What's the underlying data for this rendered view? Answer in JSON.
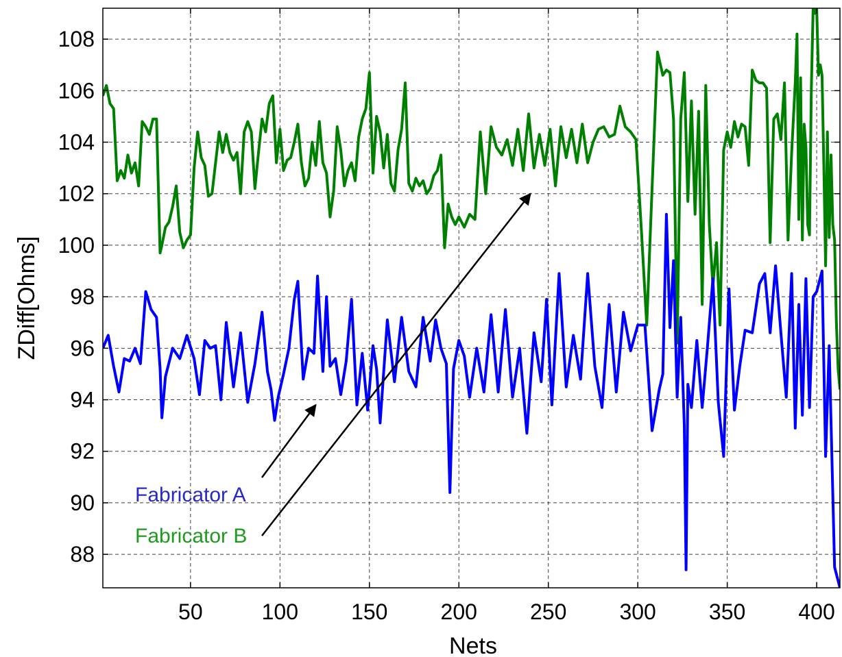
{
  "chart_data": {
    "type": "line",
    "title": "",
    "xlabel": "Nets",
    "ylabel": "ZDiff[Ohms]",
    "xlim": [
      1,
      413
    ],
    "ylim": [
      86.7,
      109.2
    ],
    "grid": true,
    "x_ticks": [
      50,
      100,
      150,
      200,
      250,
      300,
      350,
      400
    ],
    "y_ticks": [
      88,
      90,
      92,
      94,
      96,
      98,
      100,
      102,
      104,
      106,
      108
    ],
    "x_tick_labels": [
      "50",
      "100",
      "150",
      "200",
      "250",
      "300",
      "350",
      "400"
    ],
    "y_tick_labels": [
      "88",
      "90",
      "92",
      "94",
      "96",
      "98",
      "100",
      "102",
      "104",
      "106",
      "108"
    ],
    "series": [
      {
        "name": "Fabricator A",
        "color": "#0000ff",
        "x": [
          1,
          4,
          7,
          10,
          13,
          16,
          19,
          22,
          25,
          28,
          31,
          33,
          34,
          36,
          40,
          44,
          48,
          52,
          55,
          58,
          61,
          64,
          67,
          70,
          74,
          78,
          82,
          86,
          90,
          93,
          95,
          97,
          99,
          102,
          105,
          108,
          110,
          113,
          116,
          119,
          121,
          124,
          126,
          128,
          131,
          134,
          137,
          140,
          143,
          146,
          149,
          152,
          154,
          156,
          160,
          164,
          168,
          172,
          176,
          180,
          184,
          187,
          190,
          193,
          195,
          197,
          200,
          203,
          206,
          210,
          214,
          218,
          222,
          226,
          230,
          234,
          238,
          242,
          246,
          249,
          252,
          256,
          260,
          264,
          268,
          272,
          276,
          280,
          284,
          288,
          292,
          296,
          300,
          304,
          308,
          312,
          314,
          316,
          318,
          320,
          322,
          324,
          326,
          327,
          328,
          330,
          333,
          336,
          339,
          342,
          345,
          348,
          351,
          354,
          357,
          360,
          364,
          368,
          371,
          374,
          377,
          380,
          383,
          386,
          388,
          390,
          392,
          394,
          396,
          398,
          400,
          403,
          405,
          407,
          410,
          413
        ],
        "values": [
          96.0,
          96.5,
          95.3,
          94.3,
          95.6,
          95.5,
          96.0,
          95.4,
          98.2,
          97.5,
          97.2,
          95.2,
          93.3,
          94.9,
          96.0,
          95.6,
          96.5,
          95.6,
          94.2,
          96.3,
          96.0,
          96.1,
          94.0,
          97.0,
          94.5,
          96.6,
          93.9,
          95.4,
          97.4,
          95.1,
          94.4,
          93.2,
          94.1,
          95.0,
          96.0,
          97.9,
          98.6,
          94.8,
          96.0,
          95.8,
          98.8,
          95.1,
          98.0,
          95.3,
          95.6,
          94.2,
          95.5,
          97.9,
          93.8,
          95.8,
          93.6,
          96.1,
          95.2,
          93.1,
          97.1,
          94.7,
          97.2,
          95.1,
          94.5,
          97.2,
          95.5,
          97.1,
          96.0,
          95.4,
          90.4,
          95.2,
          96.3,
          95.7,
          94.1,
          96.0,
          94.3,
          97.3,
          94.3,
          97.5,
          94.1,
          96.0,
          92.7,
          96.6,
          94.7,
          97.9,
          93.8,
          98.9,
          94.5,
          96.5,
          94.8,
          98.9,
          95.3,
          93.7,
          97.7,
          94.3,
          97.4,
          95.9,
          96.9,
          96.9,
          92.8,
          94.4,
          95.0,
          101.2,
          96.8,
          99.4,
          94.1,
          97.2,
          93.0,
          87.4,
          94.6,
          93.7,
          96.3,
          93.7,
          96.1,
          98.7,
          93.9,
          91.8,
          98.3,
          93.6,
          95.3,
          96.7,
          96.6,
          98.5,
          98.9,
          96.6,
          99.2,
          96.6,
          94.1,
          98.9,
          92.9,
          97.7,
          93.4,
          98.7,
          93.7,
          98.0,
          98.2,
          99.0,
          91.8,
          96.1,
          87.5,
          86.7
        ]
      },
      {
        "name": "Fabricator B",
        "color": "#008000",
        "x": [
          1,
          3,
          5,
          7,
          9,
          11,
          13,
          15,
          17,
          19,
          21,
          23,
          25,
          27,
          29,
          31,
          33,
          34,
          36,
          38,
          40,
          42,
          44,
          46,
          48,
          50,
          52,
          54,
          56,
          58,
          60,
          62,
          64,
          66,
          68,
          70,
          72,
          74,
          76,
          78,
          80,
          82,
          84,
          86,
          88,
          90,
          92,
          94,
          96,
          98,
          100,
          102,
          104,
          106,
          108,
          110,
          112,
          114,
          116,
          118,
          120,
          122,
          124,
          126,
          128,
          130,
          132,
          134,
          136,
          138,
          140,
          142,
          144,
          146,
          148,
          150,
          152,
          154,
          156,
          158,
          160,
          162,
          164,
          166,
          168,
          170,
          172,
          174,
          176,
          178,
          180,
          182,
          184,
          186,
          188,
          190,
          192,
          194,
          196,
          198,
          200,
          203,
          206,
          209,
          212,
          215,
          218,
          221,
          224,
          227,
          230,
          233,
          236,
          239,
          242,
          245,
          248,
          251,
          254,
          257,
          260,
          263,
          266,
          269,
          272,
          275,
          278,
          281,
          284,
          287,
          290,
          293,
          296,
          299,
          302,
          305,
          308,
          311,
          313,
          314,
          316,
          318,
          320,
          322,
          324,
          326,
          328,
          330,
          332,
          334,
          336,
          338,
          340,
          342,
          344,
          346,
          348,
          350,
          352,
          354,
          356,
          358,
          360,
          362,
          364,
          366,
          368,
          370,
          372,
          374,
          376,
          378,
          380,
          382,
          384,
          386,
          388,
          389,
          390,
          391,
          392,
          393,
          394,
          395,
          396,
          397,
          398,
          399,
          400,
          401,
          402,
          403,
          404,
          405,
          406,
          407,
          408,
          409,
          410,
          411,
          412,
          413
        ],
        "values": [
          105.8,
          106.2,
          105.5,
          105.3,
          102.5,
          102.9,
          102.6,
          103.5,
          102.8,
          103.2,
          102.3,
          104.8,
          104.6,
          104.3,
          104.9,
          104.9,
          99.7,
          100.0,
          100.7,
          100.9,
          101.5,
          102.3,
          100.5,
          99.9,
          100.2,
          100.4,
          103.0,
          104.4,
          103.4,
          103.1,
          101.9,
          102.0,
          103.2,
          104.4,
          103.6,
          104.3,
          103.6,
          103.3,
          103.6,
          102.0,
          104.4,
          104.8,
          104.4,
          102.2,
          103.6,
          104.9,
          104.4,
          105.5,
          105.8,
          103.2,
          104.5,
          102.9,
          103.3,
          103.4,
          104.0,
          104.7,
          103.2,
          102.3,
          102.6,
          104.0,
          103.1,
          104.8,
          103.2,
          102.8,
          101.1,
          102.1,
          104.6,
          103.7,
          102.3,
          102.9,
          103.2,
          102.5,
          104.2,
          104.9,
          105.3,
          106.7,
          102.8,
          105.0,
          104.4,
          103.0,
          104.3,
          102.4,
          102.1,
          103.7,
          104.5,
          106.3,
          102.4,
          102.1,
          102.6,
          102.3,
          102.5,
          102.0,
          102.2,
          102.7,
          102.9,
          103.5,
          99.9,
          101.6,
          101.1,
          100.8,
          101.1,
          100.7,
          101.2,
          101.0,
          104.4,
          102.0,
          104.6,
          103.8,
          103.5,
          104.1,
          103.1,
          104.5,
          102.9,
          105.1,
          103.0,
          104.3,
          103.1,
          104.5,
          102.3,
          104.6,
          103.4,
          104.5,
          103.2,
          104.7,
          103.2,
          104.0,
          104.5,
          104.6,
          104.2,
          104.3,
          105.4,
          104.6,
          104.4,
          104.1,
          100.6,
          96.9,
          102.2,
          107.5,
          106.9,
          106.6,
          106.8,
          106.7,
          104.9,
          96.2,
          104.9,
          106.7,
          101.7,
          105.6,
          101.2,
          105.2,
          97.7,
          106.2,
          100.8,
          98.4,
          100.1,
          96.9,
          103.7,
          104.4,
          103.8,
          104.8,
          104.2,
          104.7,
          104.6,
          103.1,
          106.8,
          106.4,
          106.3,
          106.3,
          106.1,
          100.1,
          104.9,
          105.1,
          104.1,
          106.3,
          100.2,
          103.6,
          106.3,
          108.2,
          101.0,
          106.5,
          100.2,
          104.7,
          103.8,
          100.8,
          100.4,
          106.1,
          109.2,
          109.0,
          109.2,
          106.6,
          107.0,
          106.6,
          103.1,
          99.2,
          104.4,
          100.3,
          103.5,
          100.8,
          100.2,
          97.0,
          95.2,
          94.4
        ]
      }
    ],
    "annotations": [
      {
        "text": "Fabricator A",
        "color": "#2828c8",
        "arrow_to": [
          120,
          93.8
        ]
      },
      {
        "text": "Fabricator B",
        "color": "#1e9a1e",
        "arrow_to": [
          240,
          102.0
        ]
      }
    ]
  }
}
